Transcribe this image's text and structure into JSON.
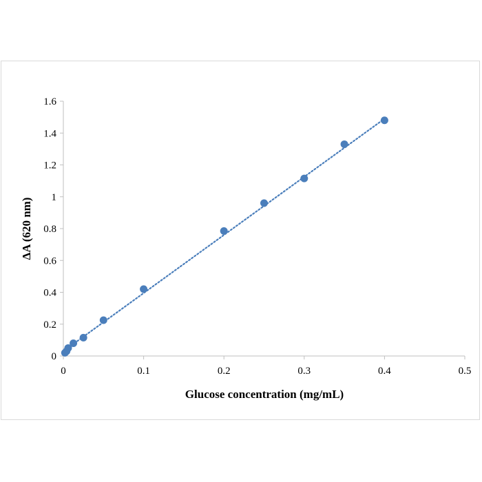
{
  "chart_data": {
    "type": "scatter",
    "xlabel": "Glucose concentration (mg/mL)",
    "ylabel": "ΔA (620 nm)",
    "xlim": [
      0,
      0.5
    ],
    "ylim": [
      0,
      1.6
    ],
    "x_ticks": [
      "0",
      "0.1",
      "0.2",
      "0.3",
      "0.4",
      "0.5"
    ],
    "y_ticks": [
      "0",
      "0.2",
      "0.4",
      "0.6",
      "0.8",
      "1",
      "1.2",
      "1.4",
      "1.6"
    ],
    "grid": false,
    "legend": "none",
    "series": [
      {
        "x": [
          0.002,
          0.004,
          0.006,
          0.0125,
          0.025,
          0.05,
          0.1,
          0.2,
          0.25,
          0.3,
          0.35,
          0.4
        ],
        "y": [
          0.02,
          0.03,
          0.05,
          0.08,
          0.115,
          0.225,
          0.42,
          0.785,
          0.96,
          1.115,
          1.33,
          1.48
        ],
        "color": "#4a7ebb"
      }
    ],
    "trendline": {
      "style": "dotted",
      "color": "#4a7ebb",
      "x": [
        0,
        0.4
      ],
      "y": [
        0.03,
        1.49
      ]
    }
  }
}
